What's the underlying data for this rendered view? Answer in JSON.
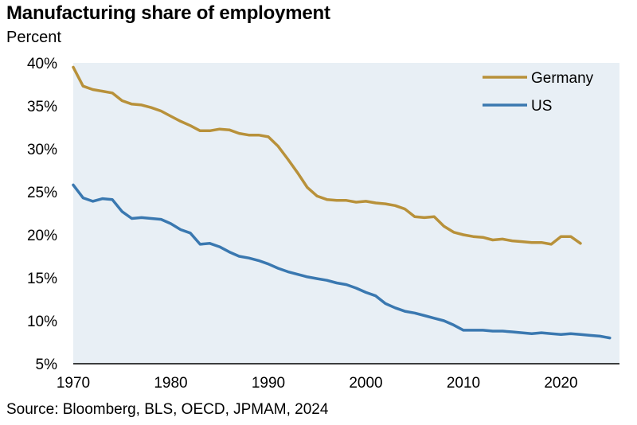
{
  "chart_data": {
    "type": "line",
    "title": "Manufacturing share of employment",
    "subtitle": "Percent",
    "source": "Source: Bloomberg, BLS, OECD, JPMAM, 2024",
    "xlabel": "",
    "ylabel": "",
    "xlim": [
      1970,
      2026
    ],
    "ylim": [
      5,
      40
    ],
    "x_ticks": [
      1970,
      1980,
      1990,
      2000,
      2010,
      2020
    ],
    "y_ticks": [
      "5%",
      "10%",
      "15%",
      "20%",
      "25%",
      "30%",
      "35%",
      "40%"
    ],
    "y_tick_values": [
      5,
      10,
      15,
      20,
      25,
      30,
      35,
      40
    ],
    "grid": false,
    "legend_position": "top-right",
    "plot_background": "#e8eff5",
    "series": [
      {
        "name": "Germany",
        "color": "#b8913a",
        "points": [
          [
            1970,
            39.5
          ],
          [
            1971,
            37.3
          ],
          [
            1972,
            36.9
          ],
          [
            1973,
            36.7
          ],
          [
            1974,
            36.5
          ],
          [
            1975,
            35.6
          ],
          [
            1976,
            35.2
          ],
          [
            1977,
            35.1
          ],
          [
            1978,
            34.8
          ],
          [
            1979,
            34.4
          ],
          [
            1980,
            33.8
          ],
          [
            1981,
            33.2
          ],
          [
            1982,
            32.7
          ],
          [
            1983,
            32.1
          ],
          [
            1984,
            32.1
          ],
          [
            1985,
            32.3
          ],
          [
            1986,
            32.2
          ],
          [
            1987,
            31.8
          ],
          [
            1988,
            31.6
          ],
          [
            1989,
            31.6
          ],
          [
            1990,
            31.4
          ],
          [
            1991,
            30.3
          ],
          [
            1992,
            28.8
          ],
          [
            1993,
            27.2
          ],
          [
            1994,
            25.5
          ],
          [
            1995,
            24.5
          ],
          [
            1996,
            24.1
          ],
          [
            1997,
            24.0
          ],
          [
            1998,
            24.0
          ],
          [
            1999,
            23.8
          ],
          [
            2000,
            23.9
          ],
          [
            2001,
            23.7
          ],
          [
            2002,
            23.6
          ],
          [
            2003,
            23.4
          ],
          [
            2004,
            23.0
          ],
          [
            2005,
            22.1
          ],
          [
            2006,
            22.0
          ],
          [
            2007,
            22.1
          ],
          [
            2008,
            21.0
          ],
          [
            2009,
            20.3
          ],
          [
            2010,
            20.0
          ],
          [
            2011,
            19.8
          ],
          [
            2012,
            19.7
          ],
          [
            2013,
            19.4
          ],
          [
            2014,
            19.5
          ],
          [
            2015,
            19.3
          ],
          [
            2016,
            19.2
          ],
          [
            2017,
            19.1
          ],
          [
            2018,
            19.1
          ],
          [
            2019,
            18.9
          ],
          [
            2020,
            19.8
          ],
          [
            2021,
            19.8
          ],
          [
            2022,
            19.0
          ]
        ]
      },
      {
        "name": "US",
        "color": "#3a78b0",
        "points": [
          [
            1970,
            25.8
          ],
          [
            1971,
            24.3
          ],
          [
            1972,
            23.9
          ],
          [
            1973,
            24.2
          ],
          [
            1974,
            24.1
          ],
          [
            1975,
            22.7
          ],
          [
            1976,
            21.9
          ],
          [
            1977,
            22.0
          ],
          [
            1978,
            21.9
          ],
          [
            1979,
            21.8
          ],
          [
            1980,
            21.3
          ],
          [
            1981,
            20.6
          ],
          [
            1982,
            20.2
          ],
          [
            1983,
            18.9
          ],
          [
            1984,
            19.0
          ],
          [
            1985,
            18.6
          ],
          [
            1986,
            18.0
          ],
          [
            1987,
            17.5
          ],
          [
            1988,
            17.3
          ],
          [
            1989,
            17.0
          ],
          [
            1990,
            16.6
          ],
          [
            1991,
            16.1
          ],
          [
            1992,
            15.7
          ],
          [
            1993,
            15.4
          ],
          [
            1994,
            15.1
          ],
          [
            1995,
            14.9
          ],
          [
            1996,
            14.7
          ],
          [
            1997,
            14.4
          ],
          [
            1998,
            14.2
          ],
          [
            1999,
            13.8
          ],
          [
            2000,
            13.3
          ],
          [
            2001,
            12.9
          ],
          [
            2002,
            12.0
          ],
          [
            2003,
            11.5
          ],
          [
            2004,
            11.1
          ],
          [
            2005,
            10.9
          ],
          [
            2006,
            10.6
          ],
          [
            2007,
            10.3
          ],
          [
            2008,
            10.0
          ],
          [
            2009,
            9.5
          ],
          [
            2010,
            8.9
          ],
          [
            2011,
            8.9
          ],
          [
            2012,
            8.9
          ],
          [
            2013,
            8.8
          ],
          [
            2014,
            8.8
          ],
          [
            2015,
            8.7
          ],
          [
            2016,
            8.6
          ],
          [
            2017,
            8.5
          ],
          [
            2018,
            8.6
          ],
          [
            2019,
            8.5
          ],
          [
            2020,
            8.4
          ],
          [
            2021,
            8.5
          ],
          [
            2022,
            8.4
          ],
          [
            2023,
            8.3
          ],
          [
            2024,
            8.2
          ],
          [
            2025,
            8.0
          ]
        ]
      }
    ]
  }
}
